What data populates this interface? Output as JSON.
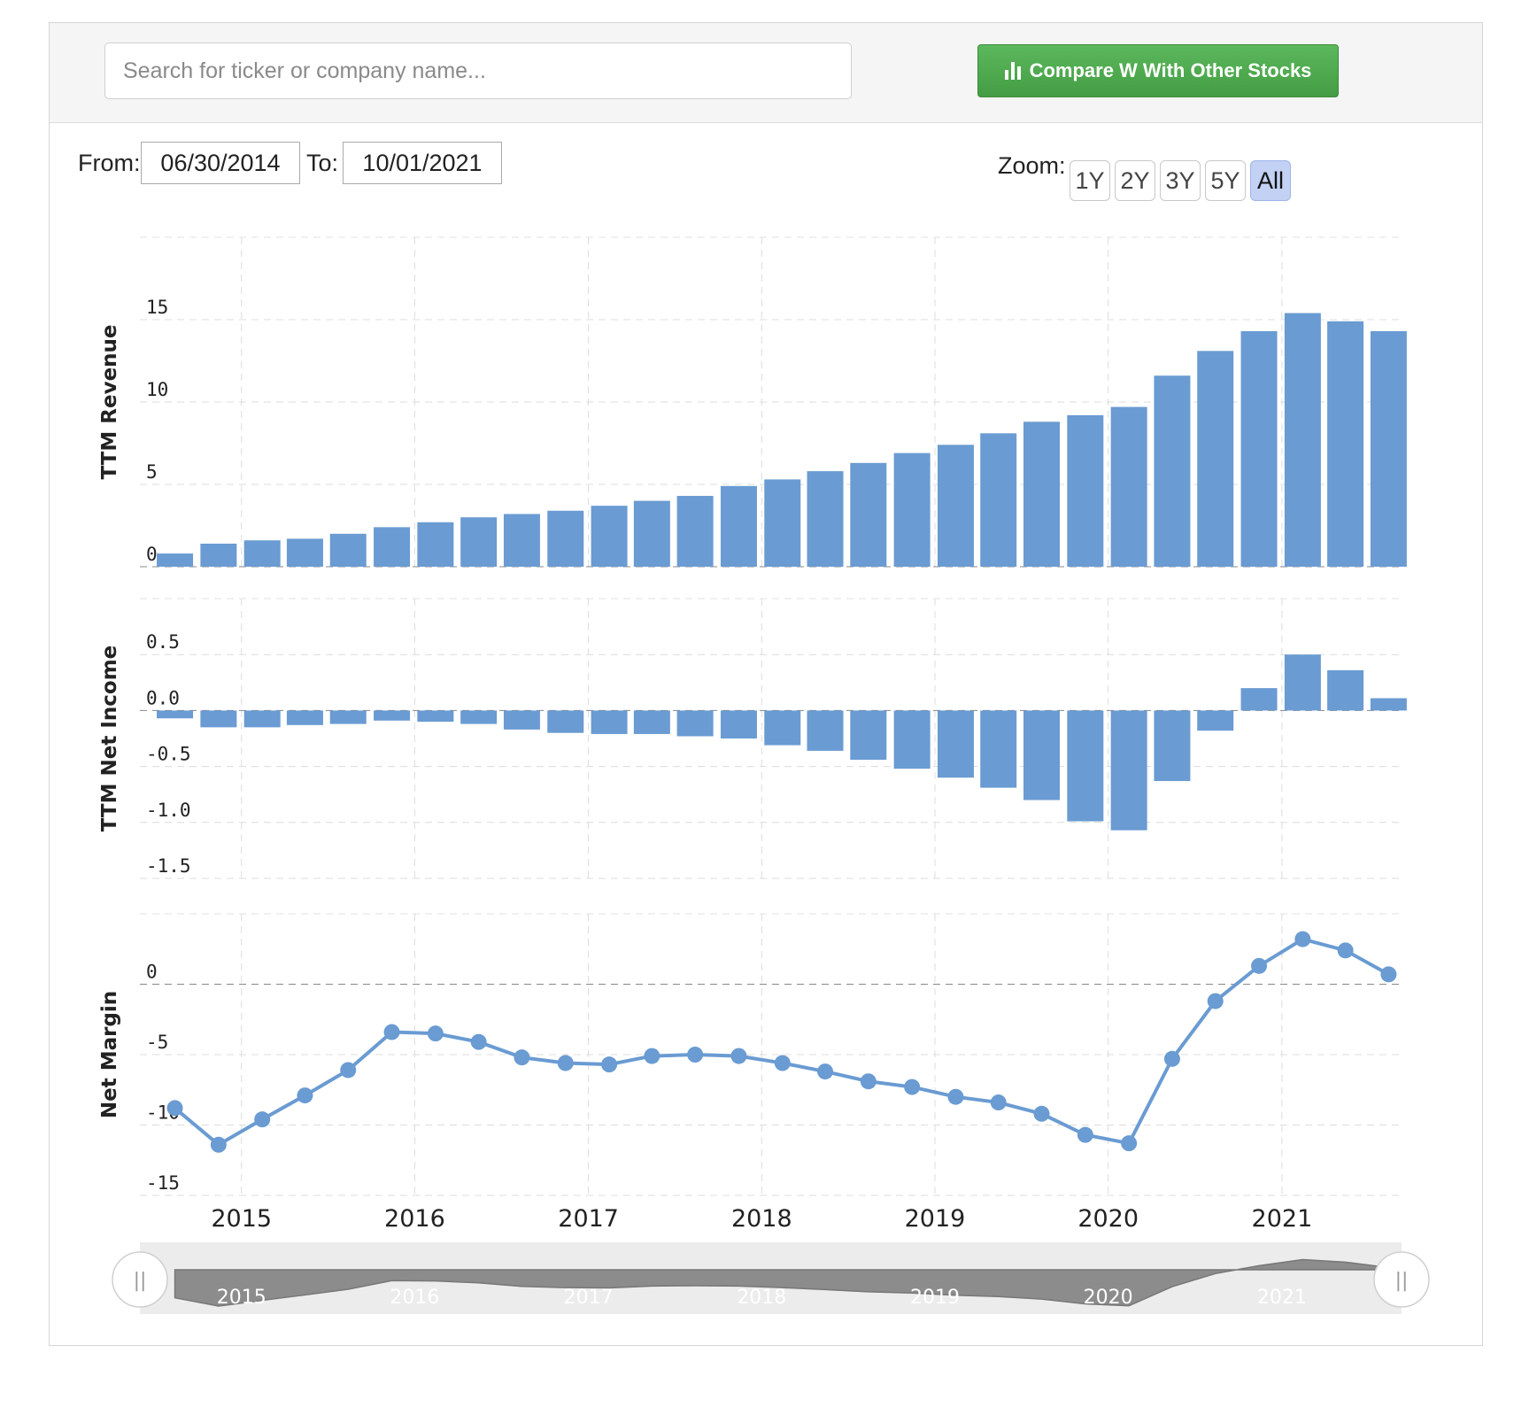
{
  "search": {
    "placeholder": "Search for ticker or company name..."
  },
  "compare_button": {
    "label": "Compare W With Other Stocks",
    "icon": "bar-chart-icon"
  },
  "range": {
    "from_label": "From:",
    "from_value": "06/30/2014",
    "to_label": "To:",
    "to_value": "10/01/2021"
  },
  "zoom": {
    "label": "Zoom:",
    "options": [
      "1Y",
      "2Y",
      "3Y",
      "5Y",
      "All"
    ],
    "selected": "All"
  },
  "colors": {
    "series": "#6a9bd2",
    "button": "#4cae4c",
    "zoom_active": "#c2d1f4",
    "navigator": "#8c8c8c"
  },
  "chart_data": [
    {
      "type": "bar",
      "ylabel": "TTM Revenue",
      "ylim": [
        0,
        20
      ],
      "yticks": [
        0,
        5,
        10,
        15
      ],
      "x": [
        "2014-06-30",
        "2014-09-30",
        "2014-12-31",
        "2015-03-31",
        "2015-06-30",
        "2015-09-30",
        "2015-12-31",
        "2016-03-31",
        "2016-06-30",
        "2016-09-30",
        "2016-12-31",
        "2017-03-31",
        "2017-06-30",
        "2017-09-30",
        "2017-12-31",
        "2018-03-31",
        "2018-06-30",
        "2018-09-30",
        "2018-12-31",
        "2019-03-31",
        "2019-06-30",
        "2019-09-30",
        "2019-12-31",
        "2020-03-31",
        "2020-06-30",
        "2020-09-30",
        "2020-12-31",
        "2021-03-31",
        "2021-06-30"
      ],
      "values": [
        0.8,
        1.4,
        1.6,
        1.7,
        2.0,
        2.4,
        2.7,
        3.0,
        3.2,
        3.4,
        3.7,
        4.0,
        4.3,
        4.9,
        5.3,
        5.8,
        6.3,
        6.9,
        7.4,
        8.1,
        8.8,
        9.2,
        9.7,
        11.6,
        13.1,
        14.3,
        15.4,
        14.9,
        14.3
      ],
      "grid": true
    },
    {
      "type": "bar",
      "ylabel": "TTM Net Income",
      "ylim": [
        -1.5,
        1.0
      ],
      "yticks": [
        0.5,
        0.0,
        -0.5,
        -1.0,
        -1.5
      ],
      "ytick_labels": [
        "0.5",
        "0.0",
        "-0.5",
        "-1.0",
        "-1.5"
      ],
      "x": [
        "2014-06-30",
        "2014-09-30",
        "2014-12-31",
        "2015-03-31",
        "2015-06-30",
        "2015-09-30",
        "2015-12-31",
        "2016-03-31",
        "2016-06-30",
        "2016-09-30",
        "2016-12-31",
        "2017-03-31",
        "2017-06-30",
        "2017-09-30",
        "2017-12-31",
        "2018-03-31",
        "2018-06-30",
        "2018-09-30",
        "2018-12-31",
        "2019-03-31",
        "2019-06-30",
        "2019-09-30",
        "2019-12-31",
        "2020-03-31",
        "2020-06-30",
        "2020-09-30",
        "2020-12-31",
        "2021-03-31",
        "2021-06-30"
      ],
      "values": [
        -0.07,
        -0.15,
        -0.15,
        -0.13,
        -0.12,
        -0.09,
        -0.1,
        -0.12,
        -0.17,
        -0.2,
        -0.21,
        -0.21,
        -0.23,
        -0.25,
        -0.31,
        -0.36,
        -0.44,
        -0.52,
        -0.6,
        -0.69,
        -0.8,
        -0.99,
        -1.07,
        -0.63,
        -0.18,
        0.2,
        0.5,
        0.36,
        0.11
      ],
      "grid": true
    },
    {
      "type": "line",
      "ylabel": "Net Margin",
      "ylim": [
        -15,
        5
      ],
      "yticks": [
        0,
        -5,
        -10,
        -15
      ],
      "x": [
        "2014-06-30",
        "2014-09-30",
        "2014-12-31",
        "2015-03-31",
        "2015-06-30",
        "2015-09-30",
        "2015-12-31",
        "2016-03-31",
        "2016-06-30",
        "2016-09-30",
        "2016-12-31",
        "2017-03-31",
        "2017-06-30",
        "2017-09-30",
        "2017-12-31",
        "2018-03-31",
        "2018-06-30",
        "2018-09-30",
        "2018-12-31",
        "2019-03-31",
        "2019-06-30",
        "2019-09-30",
        "2019-12-31",
        "2020-03-31",
        "2020-06-30",
        "2020-09-30",
        "2020-12-31",
        "2021-03-31",
        "2021-06-30"
      ],
      "values": [
        -8.8,
        -11.4,
        -9.6,
        -7.9,
        -6.1,
        -3.4,
        -3.5,
        -4.1,
        -5.2,
        -5.6,
        -5.7,
        -5.1,
        -5.0,
        -5.1,
        -5.6,
        -6.2,
        -6.9,
        -7.3,
        -8.0,
        -8.4,
        -9.2,
        -10.7,
        -11.3,
        -5.3,
        -1.2,
        1.3,
        3.2,
        2.4,
        0.7
      ],
      "xticks": [
        "2015",
        "2016",
        "2017",
        "2018",
        "2019",
        "2020",
        "2021"
      ],
      "grid": true
    }
  ],
  "navigator": {
    "xticks": [
      "2015",
      "2016",
      "2017",
      "2018",
      "2019",
      "2020",
      "2021"
    ],
    "handle_glyph": "||"
  }
}
